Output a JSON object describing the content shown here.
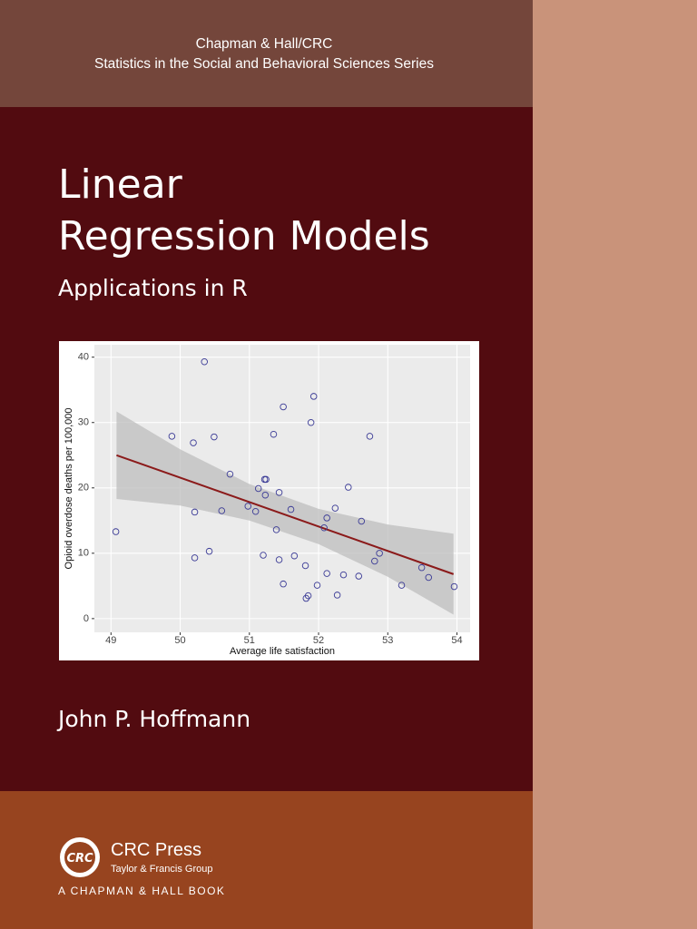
{
  "cover": {
    "series_name": [
      "Chapman & Hall/CRC",
      "Statistics in the Social and Behavioral Sciences Series"
    ],
    "title": [
      "Linear",
      "Regression Models"
    ],
    "subtitle": "Applications in R",
    "author": "John P. Hoffmann",
    "publisher": {
      "logo": "CRC",
      "name": "CRC Press",
      "group": "Taylor & Francis Group",
      "imprint": "A CHAPMAN & HALL BOOK"
    }
  },
  "chart_data": {
    "type": "scatter",
    "xlabel": "Average life satisfaction",
    "ylabel": "Opioid overdose deaths per 100,000",
    "x": [
      49.07,
      49.88,
      50.35,
      50.19,
      50.49,
      50.21,
      50.21,
      50.42,
      50.72,
      50.6,
      50.98,
      51.09,
      51.13,
      51.22,
      51.24,
      51.23,
      51.35,
      51.49,
      51.43,
      51.39,
      51.2,
      51.43,
      51.49,
      51.6,
      51.65,
      51.81,
      51.82,
      51.85,
      51.93,
      51.89,
      51.98,
      52.08,
      52.12,
      52.12,
      52.24,
      52.27,
      52.36,
      52.43,
      52.58,
      52.62,
      52.74,
      52.81,
      52.88,
      53.2,
      53.49,
      53.59,
      53.96
    ],
    "values": [
      13.3,
      27.9,
      39.3,
      26.9,
      27.8,
      16.3,
      9.3,
      10.3,
      22.1,
      16.5,
      17.2,
      16.4,
      19.9,
      21.3,
      21.3,
      18.9,
      28.2,
      32.4,
      19.3,
      13.6,
      9.7,
      9.0,
      5.3,
      16.7,
      9.6,
      8.1,
      3.1,
      3.5,
      34.0,
      30.0,
      5.1,
      13.9,
      15.4,
      6.9,
      16.9,
      3.6,
      6.7,
      20.1,
      6.5,
      14.9,
      27.9,
      8.8,
      10.0,
      5.1,
      7.8,
      6.3,
      4.9
    ],
    "color": "#3b3b96",
    "fit": {
      "x": [
        49.08,
        53.95
      ],
      "values": [
        25.0,
        6.8
      ],
      "color": "#8b1a1a"
    },
    "band": {
      "x": [
        49.08,
        50,
        51,
        52,
        53,
        53.95
      ],
      "lower": [
        18.3,
        17.3,
        15.0,
        11.4,
        6.4,
        0.6
      ],
      "upper": [
        31.7,
        25.9,
        20.6,
        16.8,
        14.4,
        13.0
      ],
      "color": "#bdbdbd"
    },
    "xlim": [
      48.76,
      54.19
    ],
    "ylim": [
      -2.1,
      41.9
    ],
    "xticks": [
      49,
      50,
      51,
      52,
      53,
      54
    ],
    "yticks": [
      0,
      10,
      20,
      30,
      40
    ],
    "grid": true
  }
}
